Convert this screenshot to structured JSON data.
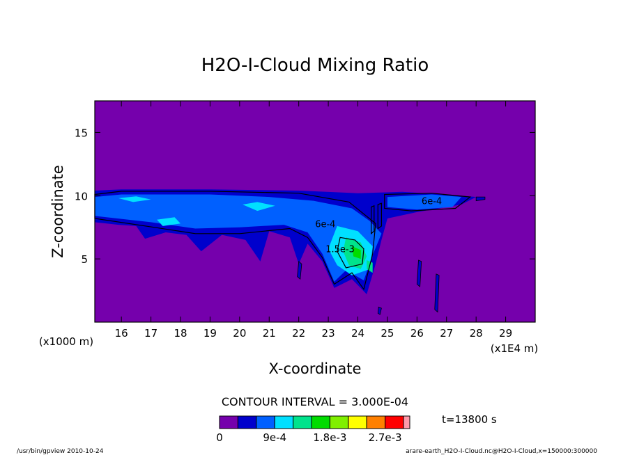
{
  "chart_data": {
    "type": "heatmap",
    "title": "H2O-I-Cloud Mixing Ratio",
    "xlabel": "X-coordinate",
    "ylabel": "Z-coordinate",
    "x_unit_label": "(x1E4 m)",
    "y_unit_label": "(x1000 m)",
    "xlim": [
      15.1,
      30.0
    ],
    "ylim": [
      0.0,
      17.5
    ],
    "x_ticks": [
      16,
      17,
      18,
      19,
      20,
      21,
      22,
      23,
      24,
      25,
      26,
      27,
      28,
      29
    ],
    "y_ticks": [
      5,
      10,
      15
    ],
    "contour_interval_label": "CONTOUR INTERVAL = 3.000E-04",
    "time_label": "t=13800 s",
    "contour_labels": [
      {
        "text": "6e-4",
        "x": 26.5,
        "z": 9.6
      },
      {
        "text": "6e-4",
        "x": 22.9,
        "z": 7.8
      },
      {
        "text": "1.5e-3",
        "x": 23.4,
        "z": 5.8
      }
    ],
    "colorbar": {
      "levels": [
        0,
        0.0003,
        0.0006,
        0.0009,
        0.0012,
        0.0015,
        0.0018,
        0.0021,
        0.0024,
        0.0027,
        0.003
      ],
      "tick_labels": [
        "0",
        "9e-4",
        "1.8e-3",
        "2.7e-3"
      ],
      "tick_levels": [
        0,
        0.0009,
        0.0018,
        0.0027
      ]
    },
    "regions": [
      {
        "level": 0,
        "color": "#7500ac",
        "coords": [
          [
            15.1,
            0
          ],
          [
            30.0,
            0
          ],
          [
            30.0,
            17.5
          ],
          [
            15.1,
            17.5
          ]
        ]
      },
      {
        "level": 1,
        "color": "#0000cc",
        "coords": [
          [
            15.1,
            10.4
          ],
          [
            16,
            10.5
          ],
          [
            19,
            10.5
          ],
          [
            22,
            10.4
          ],
          [
            24,
            10.2
          ],
          [
            25.5,
            10.3
          ],
          [
            27,
            10.1
          ],
          [
            28,
            9.9
          ],
          [
            27.5,
            9.3
          ],
          [
            26,
            8.7
          ],
          [
            25,
            8.2
          ],
          [
            24.8,
            6.5
          ],
          [
            24.6,
            4.6
          ],
          [
            24.3,
            2.2
          ],
          [
            23.8,
            3.4
          ],
          [
            23.2,
            2.7
          ],
          [
            22.8,
            4.8
          ],
          [
            22.3,
            6.2
          ],
          [
            22.0,
            4.6
          ],
          [
            21.7,
            6.7
          ],
          [
            21.0,
            7.2
          ],
          [
            20.7,
            4.8
          ],
          [
            20.2,
            6.5
          ],
          [
            19.4,
            6.9
          ],
          [
            18.7,
            5.6
          ],
          [
            18.2,
            6.9
          ],
          [
            17.5,
            7.1
          ],
          [
            16.8,
            6.6
          ],
          [
            16.5,
            7.6
          ],
          [
            15.9,
            7.7
          ],
          [
            15.1,
            7.9
          ]
        ]
      },
      {
        "level": 2,
        "color": "#0060ff",
        "coords": [
          [
            15.1,
            9.9
          ],
          [
            16,
            10.1
          ],
          [
            19,
            10.1
          ],
          [
            21,
            9.9
          ],
          [
            22.5,
            9.6
          ],
          [
            23.8,
            9.0
          ],
          [
            24.4,
            8.0
          ],
          [
            24.8,
            7.0
          ],
          [
            24.5,
            5.3
          ],
          [
            24.2,
            3.3
          ],
          [
            23.6,
            4.1
          ],
          [
            23.2,
            3.2
          ],
          [
            22.8,
            5.4
          ],
          [
            22.3,
            7.1
          ],
          [
            21.5,
            7.7
          ],
          [
            20,
            7.5
          ],
          [
            18.5,
            7.4
          ],
          [
            17,
            7.9
          ],
          [
            15.1,
            8.4
          ]
        ]
      },
      {
        "level": 2,
        "color": "#0060ff",
        "coords": [
          [
            25.0,
            9.9
          ],
          [
            26.5,
            10.1
          ],
          [
            27.5,
            9.9
          ],
          [
            27.2,
            9.1
          ],
          [
            26,
            8.9
          ],
          [
            25.0,
            9.1
          ]
        ]
      },
      {
        "level": 3,
        "color": "#00e0ff",
        "coords": [
          [
            15.9,
            9.8
          ],
          [
            16.5,
            9.95
          ],
          [
            17.0,
            9.7
          ],
          [
            16.4,
            9.5
          ]
        ]
      },
      {
        "level": 3,
        "color": "#00e0ff",
        "coords": [
          [
            20.1,
            9.3
          ],
          [
            20.6,
            9.5
          ],
          [
            21.2,
            9.2
          ],
          [
            20.6,
            8.8
          ]
        ]
      },
      {
        "level": 3,
        "color": "#00e0ff",
        "coords": [
          [
            17.2,
            8.1
          ],
          [
            17.8,
            8.3
          ],
          [
            18.0,
            7.8
          ],
          [
            17.4,
            7.6
          ]
        ]
      },
      {
        "level": 3,
        "color": "#00e0ff",
        "coords": [
          [
            23.3,
            7.6
          ],
          [
            24.0,
            7.2
          ],
          [
            24.5,
            6.0
          ],
          [
            24.4,
            4.2
          ],
          [
            23.8,
            3.7
          ],
          [
            23.3,
            4.5
          ],
          [
            23.0,
            5.8
          ]
        ]
      },
      {
        "level": 4,
        "color": "#00e38c",
        "coords": [
          [
            23.6,
            6.7
          ],
          [
            24.1,
            6.3
          ],
          [
            24.3,
            5.2
          ],
          [
            24.1,
            4.2
          ],
          [
            23.7,
            4.5
          ],
          [
            23.5,
            5.6
          ]
        ]
      },
      {
        "level": 4,
        "color": "#00e38c",
        "coords": [
          [
            24.3,
            4.9
          ],
          [
            24.5,
            4.7
          ],
          [
            24.5,
            3.9
          ],
          [
            24.3,
            4.2
          ]
        ]
      },
      {
        "level": 5,
        "color": "#00dc00",
        "coords": [
          [
            23.8,
            6.0
          ],
          [
            24.1,
            5.7
          ],
          [
            24.1,
            5.0
          ],
          [
            23.85,
            5.2
          ]
        ]
      }
    ],
    "contour_lines": [
      {
        "level": 2,
        "coords": [
          [
            15.1,
            10.1
          ],
          [
            16,
            10.35
          ],
          [
            19,
            10.35
          ],
          [
            22,
            10.2
          ],
          [
            23.7,
            9.5
          ],
          [
            24.6,
            7.8
          ],
          [
            24.5,
            5.4
          ],
          [
            24.2,
            2.6
          ],
          [
            23.8,
            3.9
          ],
          [
            23.2,
            3.0
          ],
          [
            22.8,
            5.1
          ],
          [
            22.3,
            6.7
          ],
          [
            21.7,
            7.4
          ],
          [
            20,
            7.0
          ],
          [
            18.5,
            7.0
          ],
          [
            17.1,
            7.5
          ],
          [
            15.1,
            8.2
          ]
        ]
      },
      {
        "level": 2,
        "coords": [
          [
            24.9,
            10.1
          ],
          [
            26.5,
            10.2
          ],
          [
            27.8,
            9.9
          ],
          [
            27.3,
            9.0
          ],
          [
            25.8,
            8.8
          ],
          [
            24.9,
            9.0
          ]
        ]
      },
      {
        "level": 5,
        "coords": [
          [
            23.4,
            6.7
          ],
          [
            23.9,
            6.5
          ],
          [
            24.2,
            5.8
          ],
          [
            24.15,
            4.6
          ],
          [
            23.6,
            4.3
          ],
          [
            23.3,
            5.6
          ]
        ]
      },
      {
        "level": 3,
        "coords": [
          [
            24.45,
            9.1
          ],
          [
            24.55,
            9.2
          ],
          [
            24.55,
            7.2
          ],
          [
            24.45,
            7.0
          ]
        ]
      },
      {
        "level": 3,
        "coords": [
          [
            24.68,
            9.3
          ],
          [
            24.8,
            9.4
          ],
          [
            24.8,
            7.6
          ],
          [
            24.68,
            7.4
          ]
        ]
      }
    ],
    "streaks": [
      {
        "color": "#0000cc",
        "coords": [
          [
            26.05,
            4.9
          ],
          [
            26.15,
            4.8
          ],
          [
            26.1,
            2.8
          ],
          [
            26.0,
            3.0
          ]
        ]
      },
      {
        "color": "#0000cc",
        "coords": [
          [
            26.65,
            3.8
          ],
          [
            26.75,
            3.7
          ],
          [
            26.7,
            0.8
          ],
          [
            26.6,
            1.0
          ]
        ]
      },
      {
        "color": "#0000cc",
        "coords": [
          [
            22.0,
            4.8
          ],
          [
            22.1,
            4.6
          ],
          [
            22.05,
            3.4
          ],
          [
            21.95,
            3.6
          ]
        ]
      },
      {
        "color": "#0000cc",
        "coords": [
          [
            24.7,
            1.2
          ],
          [
            24.8,
            1.1
          ],
          [
            24.75,
            0.6
          ],
          [
            24.68,
            0.7
          ]
        ]
      },
      {
        "color": "#0000cc",
        "coords": [
          [
            28.0,
            9.9
          ],
          [
            28.3,
            9.9
          ],
          [
            28.3,
            9.7
          ],
          [
            28.0,
            9.6
          ]
        ]
      }
    ]
  },
  "colors": {
    "palette": [
      "#7500ac",
      "#0000cc",
      "#0060ff",
      "#00e0ff",
      "#00e38c",
      "#00dc00",
      "#80f000",
      "#ffff00",
      "#ff8000",
      "#ff0000",
      "#ff9aaa"
    ]
  },
  "footer": {
    "left": "/usr/bin/gpview   2010-10-24",
    "right": "arare-earth_H2O-I-Cloud.nc@H2O-I-Cloud,x=150000:300000"
  }
}
